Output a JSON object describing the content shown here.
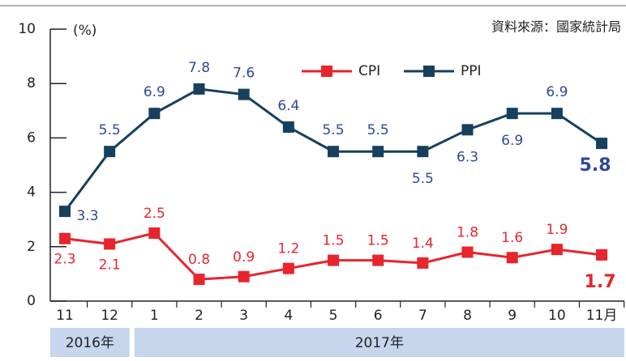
{
  "chart_data": {
    "type": "line",
    "source": "資料來源：國家統計局",
    "y_axis_label": "(%)",
    "categories": [
      "11",
      "12",
      "1",
      "2",
      "3",
      "4",
      "5",
      "6",
      "7",
      "8",
      "9",
      "10",
      "11月"
    ],
    "year_labels": [
      "2016年",
      "2017年"
    ],
    "series": [
      {
        "name": "CPI",
        "color": "#e8242c",
        "label_color": "#e8242c",
        "values": [
          2.3,
          2.1,
          2.5,
          0.8,
          0.9,
          1.2,
          1.5,
          1.5,
          1.4,
          1.8,
          1.6,
          1.9,
          1.7
        ]
      },
      {
        "name": "PPI",
        "color": "#16405e",
        "label_color": "#2c4a98",
        "values": [
          3.3,
          5.5,
          6.9,
          7.8,
          7.6,
          6.4,
          5.5,
          5.5,
          5.5,
          6.3,
          6.9,
          6.9,
          5.8
        ]
      }
    ],
    "ylim": [
      0,
      10
    ],
    "yticks": [
      0,
      2,
      4,
      6,
      8,
      10
    ]
  }
}
